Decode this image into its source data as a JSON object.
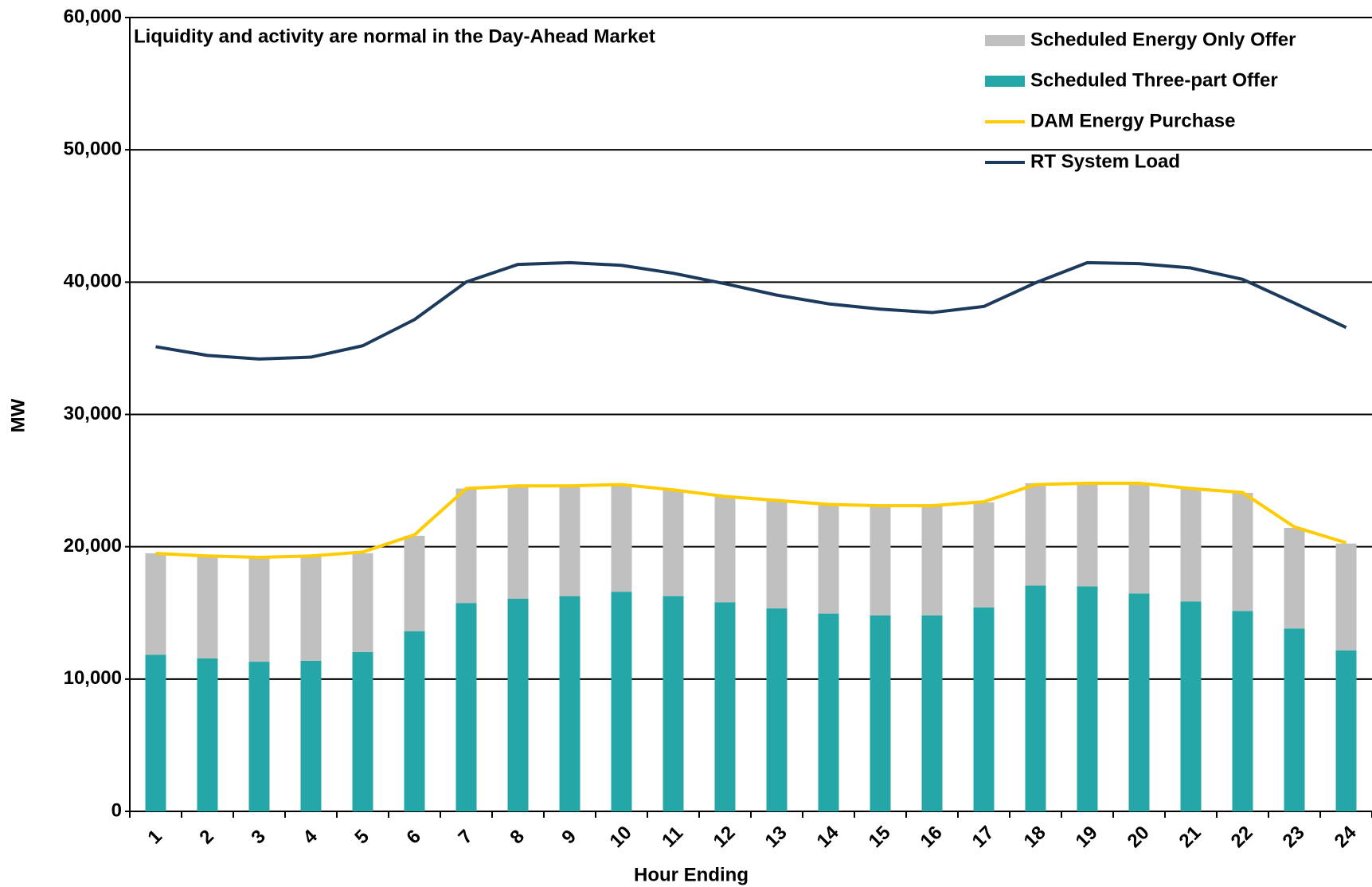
{
  "chart_data": {
    "type": "bar",
    "annotation": "Liquidity and activity are normal in the Day-Ahead Market",
    "x_label": "Hour Ending",
    "y_label": "MW",
    "categories": [
      "1",
      "2",
      "3",
      "4",
      "5",
      "6",
      "7",
      "8",
      "9",
      "10",
      "11",
      "12",
      "13",
      "14",
      "15",
      "16",
      "17",
      "18",
      "19",
      "20",
      "21",
      "22",
      "23",
      "24"
    ],
    "ylim": [
      0,
      60000
    ],
    "yticks": [
      0,
      {
        "value": 10000,
        "label": "10,000"
      },
      {
        "value": 20000,
        "label": "20,000"
      },
      {
        "value": 30000,
        "label": "30,000"
      },
      {
        "value": 40000,
        "label": "40,000"
      },
      {
        "value": 50000,
        "label": "50,000"
      },
      {
        "value": 60000,
        "label": "60,000"
      }
    ],
    "grid": true,
    "series": [
      {
        "name": "Scheduled Energy Only Offer",
        "type": "bar",
        "color": "#c0c0c0",
        "values": [
          7670,
          7680,
          7800,
          7870,
          7470,
          7210,
          8660,
          8530,
          8330,
          8070,
          8000,
          8000,
          8200,
          8260,
          8340,
          8270,
          7940,
          7740,
          7870,
          8330,
          8530,
          8920,
          7610,
          8070
        ]
      },
      {
        "name": "Scheduled Three-part Offer",
        "type": "bar",
        "color": "#25a7a7",
        "values": [
          11840,
          11570,
          11310,
          11380,
          12040,
          13620,
          15740,
          16070,
          16270,
          16600,
          16270,
          15810,
          15340,
          14950,
          14810,
          14810,
          15410,
          17060,
          17000,
          16470,
          15870,
          15150,
          13820,
          12170
        ]
      },
      {
        "name": "DAM Energy Purchase",
        "type": "line",
        "color": "#ffcc00",
        "values": [
          19500,
          19300,
          19200,
          19300,
          19600,
          20900,
          24400,
          24600,
          24600,
          24700,
          24300,
          23800,
          23500,
          23200,
          23100,
          23100,
          23400,
          24700,
          24800,
          24800,
          24400,
          24100,
          21500,
          20300
        ]
      },
      {
        "name": "RT System Load",
        "type": "line",
        "color": "#1b3a5c",
        "values": [
          35120,
          34460,
          34190,
          34330,
          35190,
          37170,
          40010,
          41340,
          41470,
          41270,
          40670,
          39880,
          39020,
          38360,
          37960,
          37700,
          38160,
          39950,
          41470,
          41400,
          41070,
          40210,
          38420,
          36570
        ]
      }
    ]
  }
}
